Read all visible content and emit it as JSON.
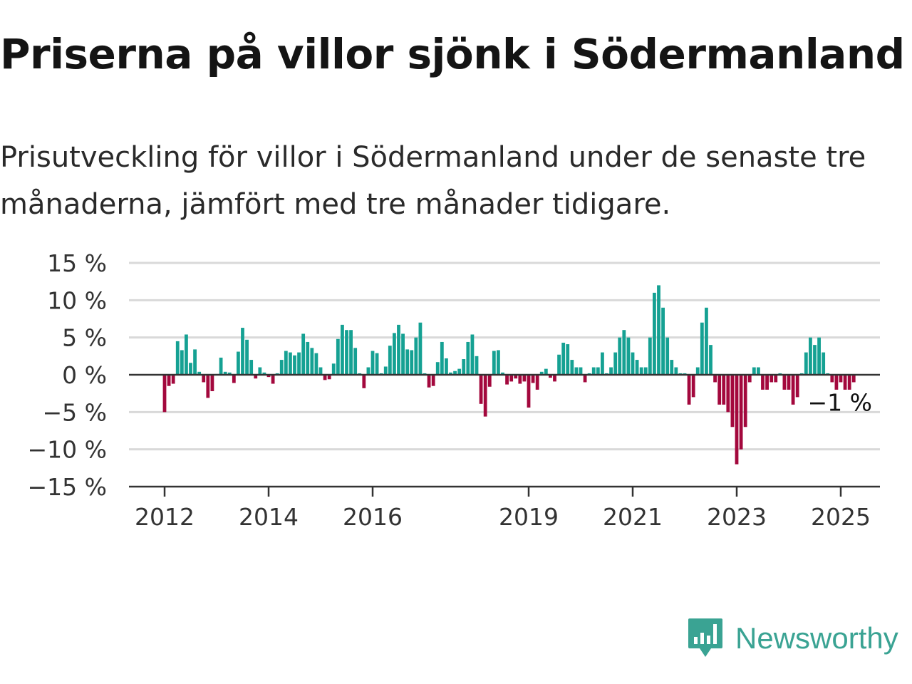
{
  "title": "Priserna på villor sjönk i Södermanland",
  "subtitle": "Prisutveckling för villor i Södermanland under de senaste tre månaderna, jämfört med tre månader tidigare.",
  "brand": {
    "name": "Newsworthy"
  },
  "colors": {
    "positive": "#15a193",
    "negative": "#a3083d",
    "grid": "#d9d9d9",
    "zero_line": "#333333",
    "brand": "#3aa393"
  },
  "chart_data": {
    "type": "bar",
    "series_x_unit": "month",
    "x_start": "2012-01",
    "x_end": "2025-04",
    "ylim": [
      -15,
      15
    ],
    "yticks": [
      15,
      10,
      5,
      0,
      -5,
      -10,
      -15
    ],
    "ytick_labels": [
      "15 %",
      "10 %",
      "5 %",
      "0 %",
      "−5 %",
      "−10 %",
      "−15 %"
    ],
    "xticks": [
      "2012",
      "2014",
      "2016",
      "2019",
      "2021",
      "2023",
      "2025"
    ],
    "end_label": "−1 %",
    "grid": true,
    "values": [
      -5.0,
      -1.5,
      -1.2,
      4.5,
      3.3,
      5.4,
      1.6,
      3.4,
      0.4,
      -1.0,
      -3.1,
      -2.2,
      0.1,
      2.3,
      0.4,
      0.3,
      -1.1,
      3.1,
      6.3,
      4.7,
      2.0,
      -0.5,
      1.0,
      0.3,
      -0.3,
      -1.2,
      0.2,
      2.0,
      3.2,
      3.0,
      2.6,
      3.0,
      5.5,
      4.4,
      3.6,
      2.9,
      1.0,
      -0.7,
      -0.6,
      1.5,
      4.8,
      6.7,
      6.0,
      6.0,
      3.6,
      0.2,
      -1.8,
      1.0,
      3.2,
      2.9,
      0.2,
      1.1,
      3.9,
      5.6,
      6.7,
      5.5,
      3.4,
      3.3,
      5.0,
      7.0,
      0.2,
      -1.7,
      -1.5,
      1.7,
      4.4,
      2.2,
      0.3,
      0.5,
      0.8,
      2.1,
      4.4,
      5.4,
      2.5,
      -3.9,
      -5.6,
      -1.6,
      3.2,
      3.3,
      0.3,
      -1.3,
      -0.9,
      -0.5,
      -1.2,
      -0.9,
      -4.4,
      -1.1,
      -2.0,
      0.4,
      0.8,
      -0.4,
      -0.9,
      2.7,
      4.3,
      4.1,
      2.0,
      1.0,
      1.0,
      -1.0,
      0.2,
      1.0,
      1.0,
      3.0,
      0.2,
      1.0,
      3.0,
      5.0,
      6.0,
      5.0,
      3.0,
      2.0,
      1.0,
      1.0,
      5.0,
      11.0,
      12.0,
      9.0,
      5.0,
      2.0,
      1.0,
      0.2,
      0.2,
      -4.0,
      -3.0,
      1.0,
      7.0,
      9.0,
      4.0,
      -1.0,
      -4.0,
      -4.0,
      -5.0,
      -7.0,
      -12.0,
      -10.0,
      -7.0,
      -1.0,
      1.0,
      1.0,
      -2.0,
      -2.0,
      -1.0,
      -1.0,
      0.2,
      -2.0,
      -2.0,
      -4.0,
      -3.0,
      0.2,
      3.0,
      5.0,
      4.0,
      5.0,
      3.0,
      0.2,
      -1.0,
      -2.0,
      -1.0,
      -2.0,
      -2.0,
      -1.0
    ]
  }
}
